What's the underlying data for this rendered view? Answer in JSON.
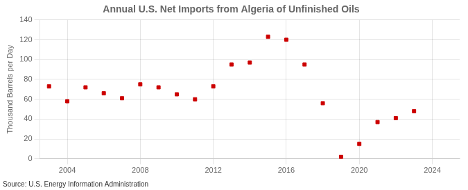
{
  "chart_data": {
    "type": "scatter",
    "title": "Annual U.S. Net Imports from Algeria of Unfinished Oils",
    "ylabel": "Thousand Barrels per Day",
    "annotations": [
      "Source: U.S. Energy Information Administration"
    ],
    "x": [
      2003,
      2004,
      2005,
      2006,
      2007,
      2008,
      2009,
      2010,
      2011,
      2012,
      2013,
      2014,
      2015,
      2016,
      2017,
      2018,
      2019,
      2020,
      2021,
      2022,
      2023
    ],
    "values": [
      73,
      58,
      72,
      66,
      61,
      75,
      72,
      65,
      60,
      73,
      95,
      97,
      123,
      120,
      95,
      56,
      2,
      15,
      37,
      41,
      48
    ],
    "color": "#cc0000",
    "marker": "square",
    "xlim": [
      2002.5,
      2025.5
    ],
    "ylim": [
      0,
      140
    ],
    "xticks": [
      2004,
      2008,
      2012,
      2016,
      2020,
      2024
    ],
    "yticks": [
      0,
      20,
      40,
      60,
      80,
      100,
      120,
      140
    ],
    "grid": true
  }
}
